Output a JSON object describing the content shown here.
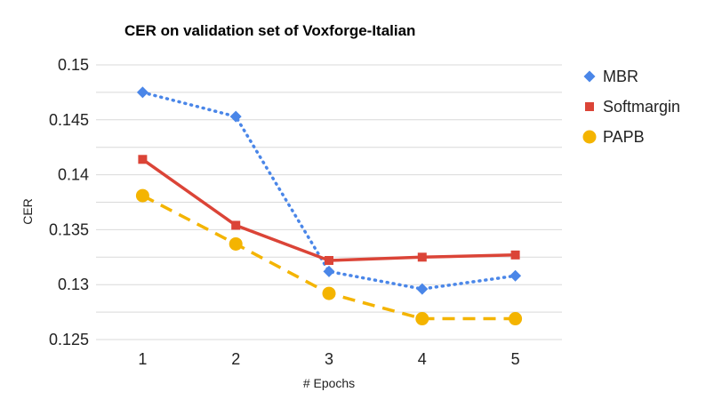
{
  "chart_data": {
    "type": "line",
    "title": "CER on validation set of Voxforge-Italian",
    "xlabel": "# Epochs",
    "ylabel": "CER",
    "x": [
      1,
      2,
      3,
      4,
      5
    ],
    "ylim": [
      0.125,
      0.15
    ],
    "yticks": [
      "0.15",
      "0.145",
      "0.14",
      "0.135",
      "0.13",
      "0.125"
    ],
    "xticks": [
      "1",
      "2",
      "3",
      "4",
      "5"
    ],
    "grid": true,
    "legend_position": "right",
    "series": [
      {
        "name": "MBR",
        "values": [
          0.1475,
          0.1453,
          0.1312,
          0.1296,
          0.1308
        ],
        "color": "#4a86e8",
        "marker": "diamond",
        "line": "dotted"
      },
      {
        "name": "Softmargin",
        "values": [
          0.1414,
          0.1354,
          0.1322,
          0.1325,
          0.1327
        ],
        "color": "#db4437",
        "marker": "square",
        "line": "solid"
      },
      {
        "name": "PAPB",
        "values": [
          0.1381,
          0.1337,
          0.1292,
          0.1269,
          0.1269
        ],
        "color": "#f4b400",
        "marker": "circle",
        "line": "dashed"
      }
    ]
  }
}
